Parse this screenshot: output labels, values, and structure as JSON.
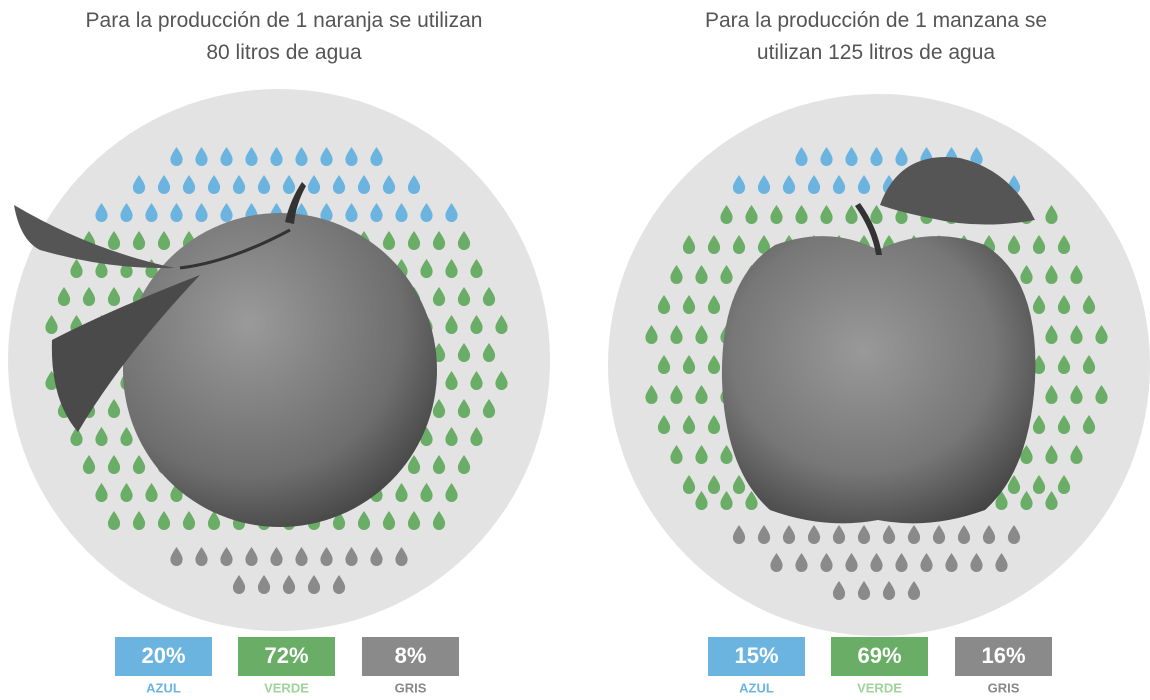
{
  "panels": [
    {
      "title_line1": "Para la producción de 1 naranja se utilizan",
      "title_line2": "80 litros de agua",
      "boxes": [
        {
          "value": "20%",
          "label": "AZUL"
        },
        {
          "value": "72%",
          "label": "VERDE"
        },
        {
          "value": "8%",
          "label": "GRIS"
        }
      ]
    },
    {
      "title_line1": "Para la producción de 1 manzana se",
      "title_line2": "utilizan 125 litros de agua",
      "boxes": [
        {
          "value": "15%",
          "label": "AZUL"
        },
        {
          "value": "69%",
          "label": "VERDE"
        },
        {
          "value": "16%",
          "label": "GRIS"
        }
      ]
    }
  ]
}
